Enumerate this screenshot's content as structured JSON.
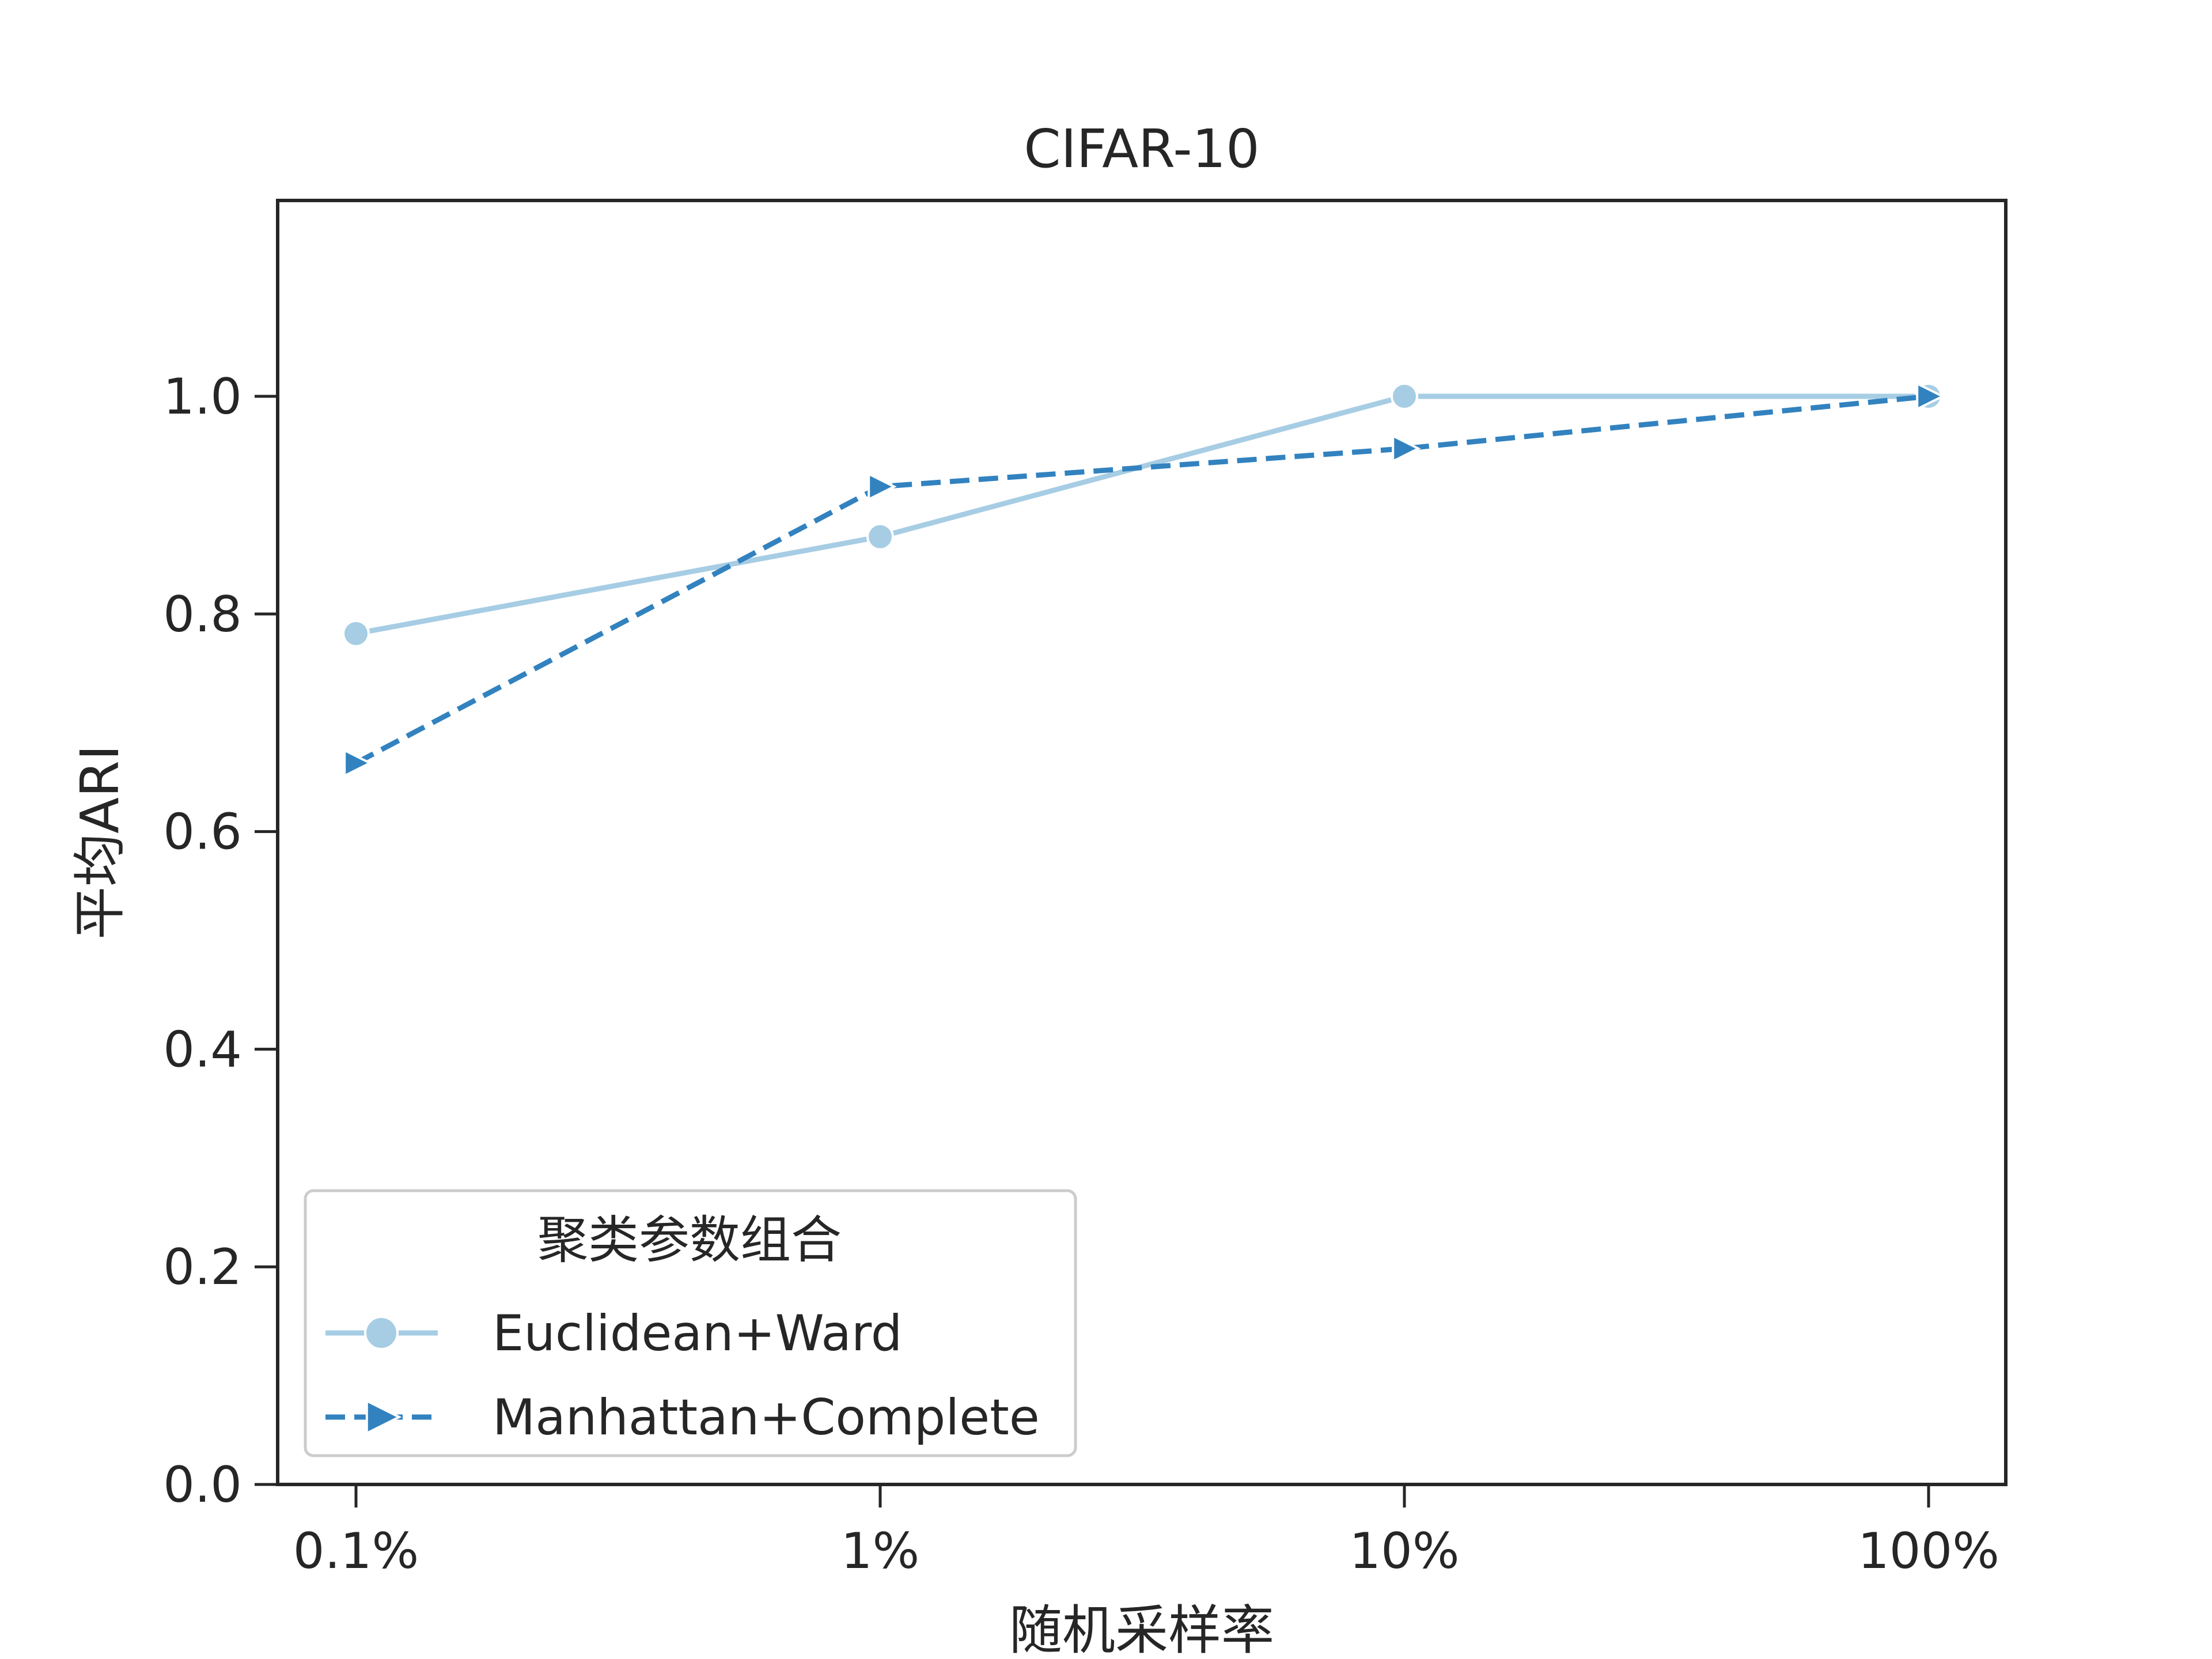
{
  "chart_data": {
    "type": "line",
    "title": "CIFAR-10",
    "xlabel": "随机采样率",
    "ylabel": "平均ARI",
    "categories": [
      "0.1%",
      "1%",
      "10%",
      "100%"
    ],
    "x_scale": "log",
    "ylim": [
      0.0,
      1.18
    ],
    "yticks": [
      0.0,
      0.2,
      0.4,
      0.6,
      0.8,
      1.0
    ],
    "ytick_labels": [
      "0.0",
      "0.2",
      "0.4",
      "0.6",
      "0.8",
      "1.0"
    ],
    "grid": false,
    "legend": {
      "title": "聚类参数组合",
      "placement": "lower-left"
    },
    "series": [
      {
        "name": "Euclidean+Ward",
        "values": [
          0.782,
          0.871,
          1.0,
          1.0
        ],
        "color": "#a6cde4",
        "line_style": "solid",
        "marker": "circle"
      },
      {
        "name": "Manhattan+Complete",
        "values": [
          0.663,
          0.917,
          0.952,
          1.0
        ],
        "color": "#3282bf",
        "line_style": "dashed",
        "marker": "triangle-right"
      }
    ]
  }
}
